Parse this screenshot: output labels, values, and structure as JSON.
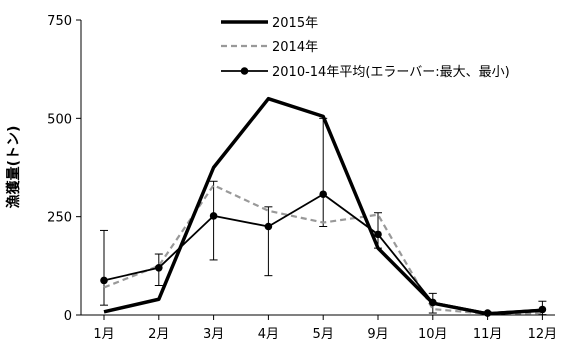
{
  "chart_data": {
    "type": "line",
    "categories": [
      "1月",
      "2月",
      "3月",
      "4月",
      "5月",
      "9月",
      "10月",
      "11月",
      "12月"
    ],
    "ylabel": "漁獲量(トン)",
    "ylim": [
      0,
      750
    ],
    "yticks": [
      0,
      250,
      500,
      750
    ],
    "grid": false,
    "legend_position": "top-center",
    "series": [
      {
        "name": "2015年",
        "values": [
          8,
          40,
          375,
          550,
          505,
          170,
          30,
          3,
          12
        ],
        "color": "#000000",
        "style": "solid-thick"
      },
      {
        "name": "2014年",
        "values": [
          70,
          125,
          330,
          265,
          235,
          255,
          15,
          3,
          5
        ],
        "color": "#999999",
        "style": "dashed"
      },
      {
        "name": "2010-14年平均(エラーバー:最大、最小)",
        "values": [
          88,
          120,
          252,
          225,
          307,
          205,
          32,
          5,
          14
        ],
        "error_min": [
          25,
          75,
          140,
          100,
          225,
          170,
          5,
          1,
          1
        ],
        "error_max": [
          215,
          155,
          340,
          275,
          500,
          260,
          55,
          8,
          35
        ],
        "color": "#000000",
        "style": "solid-marker"
      }
    ]
  }
}
